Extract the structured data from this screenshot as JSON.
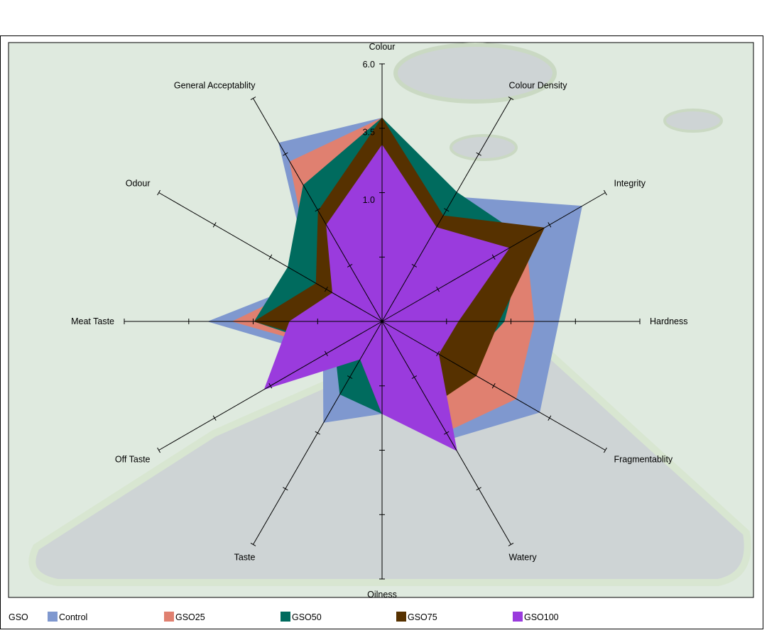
{
  "chart_data": {
    "type": "radar",
    "title": "",
    "axes": [
      "Colour",
      "Colour Density",
      "Integrity",
      "Hardness",
      "Fragmentablity",
      "Watery",
      "Oilness",
      "Taste",
      "Off Taste",
      "Meat Taste",
      "Odour",
      "General Acceptablity"
    ],
    "tick_labels": [
      "6.0",
      "3.5",
      "1.0"
    ],
    "tick_values": [
      6.0,
      3.5,
      1.0
    ],
    "range": [
      -3.5,
      6.0
    ],
    "legend_title": "GSO",
    "legend_position": "bottom",
    "series": [
      {
        "name": "Control",
        "color": "#7f98cf",
        "values": [
          4.0,
          1.8,
          5.0,
          3.0,
          3.2,
          1.5,
          -0.1,
          0.8,
          -1.0,
          2.9,
          -0.5,
          4.1
        ]
      },
      {
        "name": "GSO25",
        "color": "#e08070",
        "values": [
          4.0,
          1.0,
          2.6,
          2.1,
          2.2,
          1.2,
          -0.1,
          -1.6,
          -1.4,
          2.0,
          -0.6,
          3.3
        ]
      },
      {
        "name": "GSO50",
        "color": "#006b5e",
        "values": [
          4.0,
          2.0,
          2.6,
          1.0,
          -0.1,
          -0.2,
          -0.1,
          -0.4,
          -1.5,
          1.2,
          0.5,
          2.3
        ]
      },
      {
        "name": "GSO75",
        "color": "#563100",
        "values": [
          4.0,
          1.0,
          3.4,
          0.8,
          0.5,
          0.1,
          -0.1,
          -1.9,
          -1.7,
          1.2,
          -0.7,
          1.2
        ]
      },
      {
        "name": "GSO100",
        "color": "#9a3bdd",
        "values": [
          3.0,
          0.5,
          1.9,
          -0.7,
          -1.1,
          2.0,
          -0.1,
          -1.9,
          1.5,
          -0.1,
          -1.4,
          0.6
        ]
      }
    ]
  }
}
